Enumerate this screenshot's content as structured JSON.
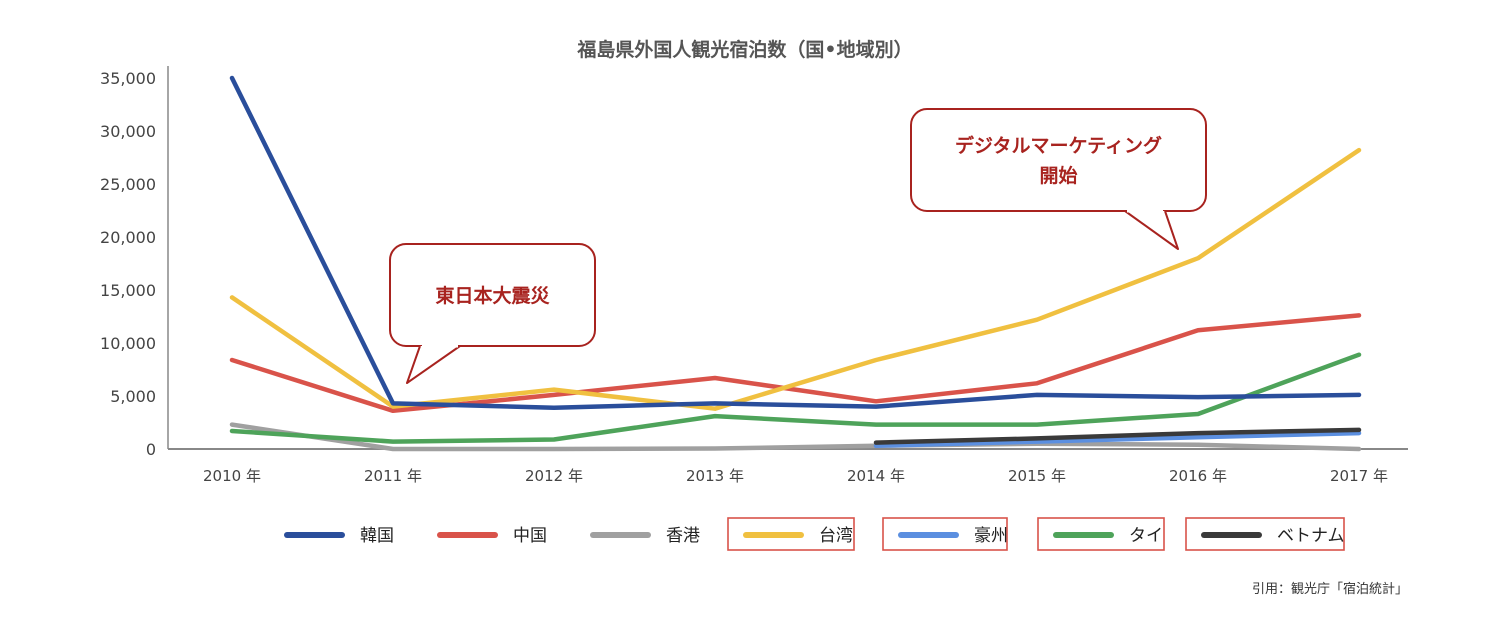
{
  "chart_data": {
    "type": "line",
    "title": "福島県外国人観光宿泊数（国•地域別）",
    "xlabel": "",
    "ylabel": "",
    "categories": [
      "2010 年",
      "2011 年",
      "2012 年",
      "2013 年",
      "2014 年",
      "2015 年",
      "2016 年",
      "2017 年"
    ],
    "y_ticks": [
      "0",
      "5,000",
      "10,000",
      "15,000",
      "20,000",
      "25,000",
      "30,000",
      "35,000"
    ],
    "ylim": [
      0,
      35000
    ],
    "grid": false,
    "legend_position": "bottom",
    "series": [
      {
        "name": "韓国",
        "color": "#2a4e9b",
        "boxed": false,
        "values": [
          35000,
          4300,
          3900,
          4300,
          4000,
          5100,
          4900,
          5100
        ]
      },
      {
        "name": "中国",
        "color": "#d9534a",
        "boxed": false,
        "values": [
          8400,
          3600,
          5100,
          6700,
          4500,
          6200,
          11200,
          12600
        ]
      },
      {
        "name": "香港",
        "color": "#a0a0a0",
        "boxed": false,
        "values": [
          2300,
          0,
          0,
          50,
          300,
          500,
          400,
          0
        ]
      },
      {
        "name": "台湾",
        "color": "#f0c040",
        "boxed": true,
        "values": [
          14300,
          4000,
          5600,
          3800,
          8400,
          12200,
          18000,
          28200
        ]
      },
      {
        "name": "豪州",
        "color": "#5b8fe0",
        "boxed": true,
        "values": [
          null,
          null,
          null,
          null,
          300,
          700,
          1100,
          1500
        ]
      },
      {
        "name": "タイ",
        "color": "#4ea35a",
        "boxed": true,
        "values": [
          1700,
          700,
          900,
          3100,
          2300,
          2300,
          3300,
          8900
        ]
      },
      {
        "name": "ベトナム",
        "color": "#3a3a3a",
        "boxed": true,
        "values": [
          null,
          null,
          null,
          null,
          600,
          1000,
          1500,
          1800
        ]
      }
    ],
    "annotations": [
      {
        "text_lines": [
          "東日本大震災"
        ],
        "points_to": "2011 年"
      },
      {
        "text_lines": [
          "デジタルマーケティング",
          "開始"
        ],
        "points_to": "2016 年"
      }
    ],
    "source": "引用：観光庁「宿泊統計」"
  },
  "colors": {
    "callout_border": "#a8231f",
    "callout_text": "#a8231f",
    "axis": "#888888",
    "legend_box_border": "#d9534a"
  }
}
